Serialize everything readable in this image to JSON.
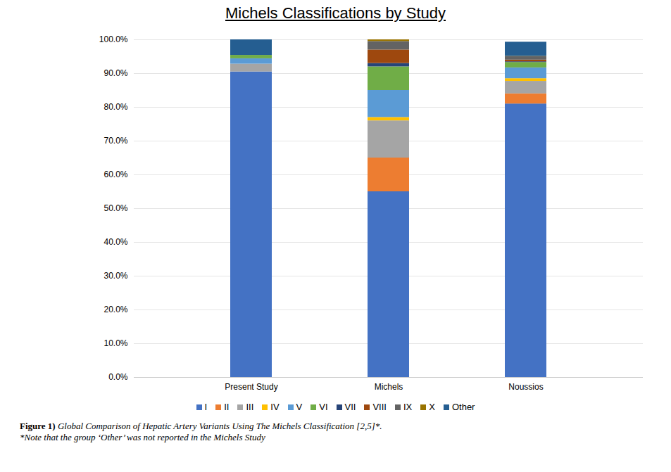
{
  "chart_data": {
    "type": "bar",
    "stacked": true,
    "title": "Michels Classifications by Study",
    "caption_label": "Figure 1)",
    "caption": "Global Comparison of Hepatic Artery Variants Using The Michels Classification [2,5]*.",
    "note": "*Note that the group ‘Other’ was not reported in the Michels Study",
    "categories": [
      "Present Study",
      "Michels",
      "Noussios"
    ],
    "series": [
      {
        "name": "I",
        "color": "#4472c4",
        "values": [
          90.5,
          55,
          81
        ]
      },
      {
        "name": "II",
        "color": "#ed7d31",
        "values": [
          0,
          10,
          3
        ]
      },
      {
        "name": "III",
        "color": "#a5a5a5",
        "values": [
          2.3,
          11,
          3.7
        ]
      },
      {
        "name": "IV",
        "color": "#ffc000",
        "values": [
          0,
          1,
          0.8
        ]
      },
      {
        "name": "V",
        "color": "#5b9bd5",
        "values": [
          1.6,
          8,
          3.2
        ]
      },
      {
        "name": "VI",
        "color": "#70ad47",
        "values": [
          1.0,
          7,
          1.6
        ]
      },
      {
        "name": "VII",
        "color": "#264478",
        "values": [
          0,
          1,
          0.2
        ]
      },
      {
        "name": "VIII",
        "color": "#9e480e",
        "values": [
          0,
          4,
          0.5
        ]
      },
      {
        "name": "IX",
        "color": "#636363",
        "values": [
          0,
          2.5,
          1
        ]
      },
      {
        "name": "X",
        "color": "#997300",
        "values": [
          0,
          0.5,
          0.1
        ]
      },
      {
        "name": "Other",
        "color": "#255e91",
        "values": [
          4.6,
          null,
          4.2
        ]
      }
    ],
    "ylim": [
      0,
      100
    ],
    "yticks": [
      {
        "value": 0,
        "label": "0.0%"
      },
      {
        "value": 10,
        "label": "10.0%"
      },
      {
        "value": 20,
        "label": "20.0%"
      },
      {
        "value": 30,
        "label": "30.0%"
      },
      {
        "value": 40,
        "label": "40.0%"
      },
      {
        "value": 50,
        "label": "50.0%"
      },
      {
        "value": 60,
        "label": "60.0%"
      },
      {
        "value": 70,
        "label": "70.0%"
      },
      {
        "value": 80,
        "label": "80.0%"
      },
      {
        "value": 90,
        "label": "90.0%"
      },
      {
        "value": 100,
        "label": "100.0%"
      }
    ],
    "grid": true,
    "legend": "bottom"
  }
}
